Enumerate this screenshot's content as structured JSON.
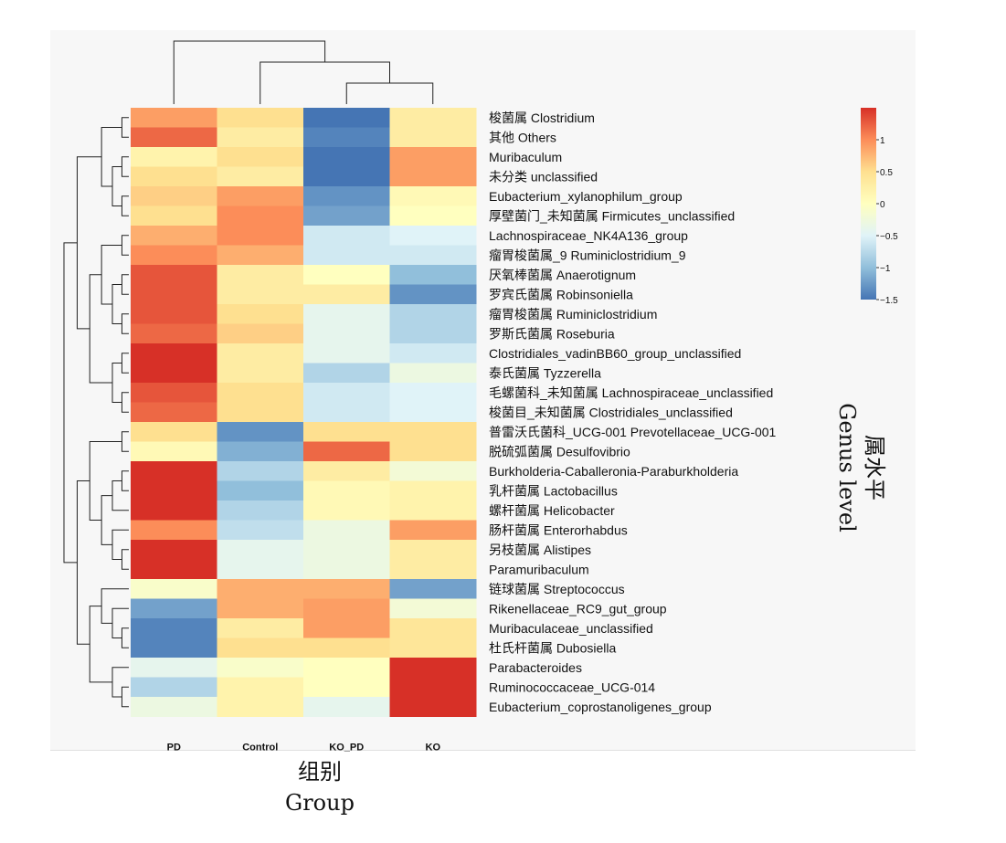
{
  "chart_data": {
    "type": "heatmap",
    "columns": [
      "PD",
      "Control",
      "KO_PD",
      "KO"
    ],
    "rows": [
      "梭菌属 Clostridium",
      "其他 Others",
      "Muribaculum",
      "未分类 unclassified",
      "Eubacterium_xylanophilum_group",
      "厚壁菌门_未知菌属 Firmicutes_unclassified",
      "Lachnospiraceae_NK4A136_group",
      "瘤胃梭菌属_9 Ruminiclostridium_9",
      "厌氧棒菌属 Anaerotignum",
      "罗宾氏菌属 Robinsoniella",
      "瘤胃梭菌属 Ruminiclostridium",
      "罗斯氏菌属 Roseburia",
      "Clostridiales_vadinBB60_group_unclassified",
      "泰氏菌属 Tyzzerella",
      "毛螺菌科_未知菌属 Lachnospiraceae_unclassified",
      "梭菌目_未知菌属 Clostridiales_unclassified",
      "普雷沃氏菌科_UCG-001 Prevotellaceae_UCG-001",
      "脱硫弧菌属 Desulfovibrio",
      "Burkholderia-Caballeronia-Paraburkholderia",
      "乳杆菌属 Lactobacillus",
      "螺杆菌属 Helicobacter",
      "肠杆菌属 Enterorhabdus",
      "另枝菌属 Alistipes",
      "Paramuribaculum",
      "链球菌属 Streptococcus",
      "Rikenellaceae_RC9_gut_group",
      "Muribaculaceae_unclassified",
      "杜氏杆菌属 Dubosiella",
      "Parabacteroides",
      "Ruminococcaceae_UCG-014",
      "Eubacterium_coprostanoligenes_group"
    ],
    "values": [
      [
        0.9,
        0.5,
        -1.5,
        0.3
      ],
      [
        1.2,
        0.3,
        -1.4,
        0.3
      ],
      [
        0.2,
        0.5,
        -1.5,
        0.9
      ],
      [
        0.5,
        0.3,
        -1.5,
        0.9
      ],
      [
        0.6,
        0.9,
        -1.3,
        0.1
      ],
      [
        0.5,
        1.0,
        -1.2,
        0.0
      ],
      [
        0.8,
        1.0,
        -0.6,
        -0.5
      ],
      [
        1.0,
        0.8,
        -0.6,
        -0.6
      ],
      [
        1.3,
        0.3,
        0.0,
        -1.0
      ],
      [
        1.3,
        0.3,
        0.3,
        -1.3
      ],
      [
        1.3,
        0.5,
        -0.4,
        -0.8
      ],
      [
        1.2,
        0.6,
        -0.4,
        -0.8
      ],
      [
        1.5,
        0.3,
        -0.4,
        -0.6
      ],
      [
        1.5,
        0.3,
        -0.8,
        -0.3
      ],
      [
        1.3,
        0.5,
        -0.6,
        -0.5
      ],
      [
        1.2,
        0.5,
        -0.6,
        -0.5
      ],
      [
        0.5,
        -1.3,
        0.5,
        0.5
      ],
      [
        0.1,
        -1.1,
        1.2,
        0.5
      ],
      [
        1.5,
        -0.8,
        0.3,
        -0.2
      ],
      [
        1.5,
        -1.0,
        0.1,
        0.2
      ],
      [
        1.5,
        -0.8,
        0.1,
        0.2
      ],
      [
        1.0,
        -0.7,
        -0.3,
        0.9
      ],
      [
        1.6,
        -0.4,
        -0.3,
        0.3
      ],
      [
        1.6,
        -0.4,
        -0.3,
        0.3
      ],
      [
        -0.1,
        0.8,
        0.8,
        -1.2
      ],
      [
        -1.2,
        0.8,
        0.9,
        -0.2
      ],
      [
        -1.4,
        0.3,
        0.9,
        0.4
      ],
      [
        -1.4,
        0.5,
        0.5,
        0.4
      ],
      [
        -0.4,
        -0.1,
        0.0,
        1.6
      ],
      [
        -0.8,
        0.2,
        0.0,
        1.6
      ],
      [
        -0.3,
        0.2,
        -0.4,
        1.6
      ]
    ],
    "color_scale": {
      "min": -1.5,
      "max": 1.5,
      "colors": [
        "#4575b4",
        "#91bfdb",
        "#e0f3f8",
        "#ffffbf",
        "#fee090",
        "#fc8d59",
        "#d73027"
      ]
    },
    "legend_ticks": [
      "1",
      "0.5",
      "0",
      "−0.5",
      "−1",
      "−1.5"
    ],
    "legend_tick_values": [
      1,
      0.5,
      0,
      -0.5,
      -1,
      -1.5
    ],
    "xlabel_cn": "组别",
    "xlabel_en": "Group",
    "ylabel_cn": "属水平",
    "ylabel_en": "Genus  level",
    "row_tree_order": [
      [
        [
          0,
          1
        ],
        [
          [
            2,
            3
          ],
          [
            4,
            5
          ]
        ]
      ],
      [
        [
          [
            6,
            7
          ],
          [
            [
              8,
              9
            ],
            [
              10,
              11
            ]
          ]
        ],
        [
          [
            12,
            13
          ],
          [
            14,
            15
          ]
        ]
      ],
      [
        [
          16,
          17
        ],
        [
          [
            [
              18,
              19
            ],
            20
          ],
          [
            21,
            [
              22,
              23
            ]
          ]
        ]
      ],
      [
        [
          24,
          [
            25,
            [
              26,
              27
            ]
          ]
        ],
        [
          28,
          [
            29,
            30
          ]
        ]
      ]
    ],
    "col_tree": [
      0,
      [
        1,
        [
          2,
          3
        ]
      ]
    ]
  }
}
